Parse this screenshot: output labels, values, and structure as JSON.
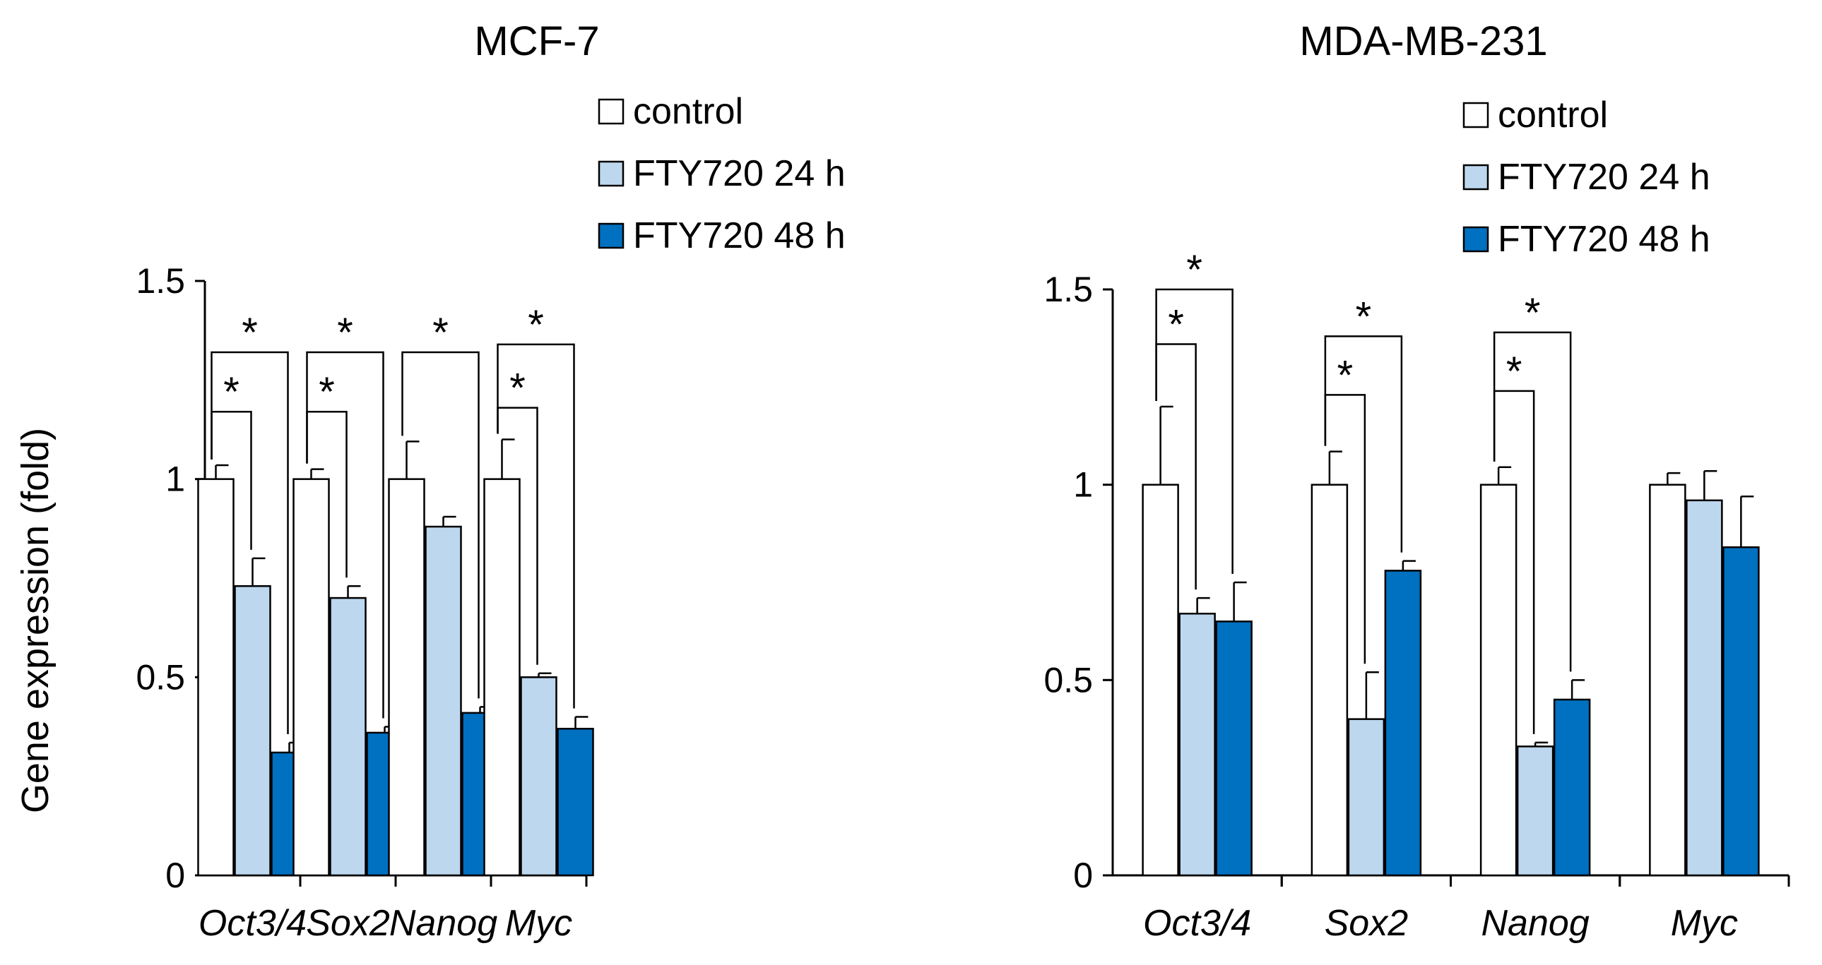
{
  "colors": {
    "control": "#ffffff",
    "fty24": "#bdd7ee",
    "fty48": "#0070c0",
    "axis": "#000000"
  },
  "chart_data": [
    {
      "type": "bar",
      "title": "MCF-7",
      "ylabel": "Gene expression (fold)",
      "xlabel": "",
      "ylim": [
        0,
        1.5
      ],
      "yticks": [
        "0",
        "0.5",
        "1",
        "1.5"
      ],
      "categories": [
        "Oct3/4",
        "Sox2",
        "Nanog",
        "Myc"
      ],
      "legend": [
        "control",
        "FTY720 24 h",
        "FTY720 48 h"
      ],
      "series": [
        {
          "name": "control",
          "values": [
            1.0,
            1.0,
            1.0,
            1.0
          ],
          "errors": [
            0.035,
            0.025,
            0.095,
            0.1
          ]
        },
        {
          "name": "FTY720 24 h",
          "values": [
            0.73,
            0.7,
            0.88,
            0.5
          ],
          "errors": [
            0.07,
            0.03,
            0.025,
            0.01
          ]
        },
        {
          "name": "FTY720 48 h",
          "values": [
            0.31,
            0.36,
            0.41,
            0.37
          ],
          "errors": [
            0.025,
            0.015,
            0.015,
            0.03
          ]
        }
      ],
      "significance": [
        {
          "category": 0,
          "from": 0,
          "to": 1,
          "level": 1.17,
          "label": "*"
        },
        {
          "category": 0,
          "from": 0,
          "to": 2,
          "level": 1.32,
          "label": "*"
        },
        {
          "category": 1,
          "from": 0,
          "to": 1,
          "level": 1.17,
          "label": "*"
        },
        {
          "category": 1,
          "from": 0,
          "to": 2,
          "level": 1.32,
          "label": "*"
        },
        {
          "category": 2,
          "from": 0,
          "to": 2,
          "level": 1.32,
          "label": "*"
        },
        {
          "category": 3,
          "from": 0,
          "to": 1,
          "level": 1.18,
          "label": "*"
        },
        {
          "category": 3,
          "from": 0,
          "to": 2,
          "level": 1.34,
          "label": "*"
        }
      ]
    },
    {
      "type": "bar",
      "title": "MDA-MB-231",
      "ylabel": "",
      "xlabel": "",
      "ylim": [
        0,
        1.5
      ],
      "yticks": [
        "0",
        "0.5",
        "1",
        "1.5"
      ],
      "categories": [
        "Oct3/4",
        "Sox2",
        "Nanog",
        "Myc"
      ],
      "legend": [
        "control",
        "FTY720 24 h",
        "FTY720 48 h"
      ],
      "series": [
        {
          "name": "control",
          "values": [
            1.0,
            1.0,
            1.0,
            1.0
          ],
          "errors": [
            0.2,
            0.085,
            0.045,
            0.03
          ]
        },
        {
          "name": "FTY720 24 h",
          "values": [
            0.67,
            0.4,
            0.33,
            0.96
          ],
          "errors": [
            0.04,
            0.12,
            0.01,
            0.075
          ]
        },
        {
          "name": "FTY720 48 h",
          "values": [
            0.65,
            0.78,
            0.45,
            0.84
          ],
          "errors": [
            0.1,
            0.025,
            0.05,
            0.13
          ]
        }
      ],
      "significance": [
        {
          "category": 0,
          "from": 0,
          "to": 1,
          "level": 1.36,
          "label": "*"
        },
        {
          "category": 0,
          "from": 0,
          "to": 2,
          "level": 1.5,
          "label": "*"
        },
        {
          "category": 1,
          "from": 0,
          "to": 1,
          "level": 1.23,
          "label": "*"
        },
        {
          "category": 1,
          "from": 0,
          "to": 2,
          "level": 1.38,
          "label": "*"
        },
        {
          "category": 2,
          "from": 0,
          "to": 1,
          "level": 1.24,
          "label": "*"
        },
        {
          "category": 2,
          "from": 0,
          "to": 2,
          "level": 1.39,
          "label": "*"
        }
      ]
    }
  ]
}
